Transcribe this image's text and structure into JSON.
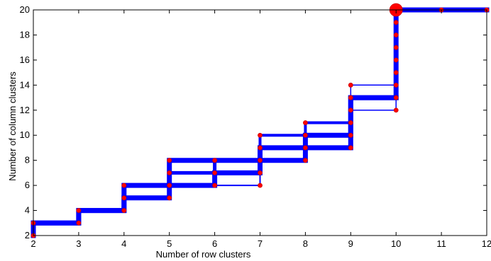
{
  "chart_data": {
    "type": "line",
    "title": "",
    "xlabel": "Number of row clusters",
    "ylabel": "Number of column clusters",
    "xlim": [
      2,
      12
    ],
    "ylim": [
      2,
      20
    ],
    "xticks": [
      2,
      3,
      4,
      5,
      6,
      7,
      8,
      9,
      10,
      11,
      12
    ],
    "yticks": [
      2,
      4,
      6,
      8,
      10,
      12,
      14,
      16,
      18,
      20
    ],
    "grid": false,
    "legend": "none",
    "colors": {
      "path": "#0000ff",
      "points": "#ff0000",
      "point_edge": "#cc0000"
    },
    "paths": [
      {
        "weight": 7,
        "points": [
          [
            2,
            2
          ],
          [
            2,
            3
          ],
          [
            3,
            3
          ],
          [
            3,
            4
          ],
          [
            4,
            4
          ],
          [
            4,
            5
          ],
          [
            5,
            5
          ],
          [
            5,
            6
          ],
          [
            6,
            6
          ],
          [
            6,
            7
          ],
          [
            7,
            7
          ],
          [
            7,
            8
          ],
          [
            8,
            8
          ],
          [
            8,
            9
          ],
          [
            9,
            9
          ],
          [
            9,
            13
          ],
          [
            10,
            13
          ],
          [
            10,
            20
          ],
          [
            12,
            20
          ]
        ]
      },
      {
        "weight": 7,
        "points": [
          [
            2,
            3
          ],
          [
            3,
            3
          ],
          [
            3,
            4
          ],
          [
            4,
            4
          ],
          [
            4,
            6
          ],
          [
            5,
            6
          ],
          [
            5,
            8
          ],
          [
            7,
            8
          ],
          [
            7,
            9
          ],
          [
            8,
            9
          ],
          [
            8,
            10
          ],
          [
            9,
            10
          ],
          [
            9,
            13
          ],
          [
            10,
            13
          ]
        ]
      },
      {
        "weight": 5,
        "points": [
          [
            5,
            7
          ],
          [
            6,
            7
          ],
          [
            6,
            8
          ]
        ]
      },
      {
        "weight": 4,
        "points": [
          [
            7,
            9
          ],
          [
            7,
            10
          ],
          [
            8,
            10
          ],
          [
            8,
            11
          ],
          [
            9,
            11
          ],
          [
            9,
            12
          ],
          [
            9,
            13
          ]
        ]
      },
      {
        "weight": 2,
        "points": [
          [
            5,
            6
          ],
          [
            7,
            6
          ],
          [
            7,
            8
          ]
        ]
      },
      {
        "weight": 1.5,
        "points": [
          [
            7,
            10
          ],
          [
            9,
            10
          ]
        ]
      },
      {
        "weight": 1.5,
        "points": [
          [
            8,
            9
          ],
          [
            9,
            9
          ]
        ]
      },
      {
        "weight": 1.5,
        "points": [
          [
            9,
            12
          ],
          [
            10,
            12
          ],
          [
            10,
            13
          ]
        ]
      },
      {
        "weight": 1.5,
        "points": [
          [
            9,
            13
          ],
          [
            9,
            14
          ],
          [
            10,
            14
          ]
        ]
      }
    ],
    "nodes": [
      {
        "x": 2,
        "y": 2,
        "size": 3
      },
      {
        "x": 2,
        "y": 3,
        "size": 3
      },
      {
        "x": 3,
        "y": 3,
        "size": 3
      },
      {
        "x": 3,
        "y": 4,
        "size": 3
      },
      {
        "x": 4,
        "y": 4,
        "size": 3
      },
      {
        "x": 4,
        "y": 5,
        "size": 3
      },
      {
        "x": 4,
        "y": 6,
        "size": 3
      },
      {
        "x": 5,
        "y": 5,
        "size": 3
      },
      {
        "x": 5,
        "y": 6,
        "size": 3
      },
      {
        "x": 5,
        "y": 7,
        "size": 3
      },
      {
        "x": 5,
        "y": 8,
        "size": 3
      },
      {
        "x": 6,
        "y": 6,
        "size": 3
      },
      {
        "x": 6,
        "y": 7,
        "size": 3
      },
      {
        "x": 6,
        "y": 8,
        "size": 3
      },
      {
        "x": 7,
        "y": 6,
        "size": 3
      },
      {
        "x": 7,
        "y": 7,
        "size": 3
      },
      {
        "x": 7,
        "y": 8,
        "size": 3
      },
      {
        "x": 7,
        "y": 9,
        "size": 3
      },
      {
        "x": 7,
        "y": 10,
        "size": 3
      },
      {
        "x": 8,
        "y": 8,
        "size": 3
      },
      {
        "x": 8,
        "y": 9,
        "size": 3
      },
      {
        "x": 8,
        "y": 10,
        "size": 3
      },
      {
        "x": 8,
        "y": 11,
        "size": 3
      },
      {
        "x": 9,
        "y": 9,
        "size": 3
      },
      {
        "x": 9,
        "y": 10,
        "size": 3
      },
      {
        "x": 9,
        "y": 11,
        "size": 3
      },
      {
        "x": 9,
        "y": 12,
        "size": 3
      },
      {
        "x": 9,
        "y": 13,
        "size": 3
      },
      {
        "x": 9,
        "y": 14,
        "size": 3
      },
      {
        "x": 10,
        "y": 12,
        "size": 3
      },
      {
        "x": 10,
        "y": 13,
        "size": 3
      },
      {
        "x": 10,
        "y": 14,
        "size": 3
      },
      {
        "x": 10,
        "y": 15,
        "size": 3
      },
      {
        "x": 10,
        "y": 16,
        "size": 3
      },
      {
        "x": 10,
        "y": 17,
        "size": 3
      },
      {
        "x": 10,
        "y": 18,
        "size": 3
      },
      {
        "x": 10,
        "y": 19,
        "size": 3
      },
      {
        "x": 10,
        "y": 20,
        "size": 9
      },
      {
        "x": 11,
        "y": 20,
        "size": 3
      },
      {
        "x": 12,
        "y": 20,
        "size": 3
      }
    ]
  }
}
